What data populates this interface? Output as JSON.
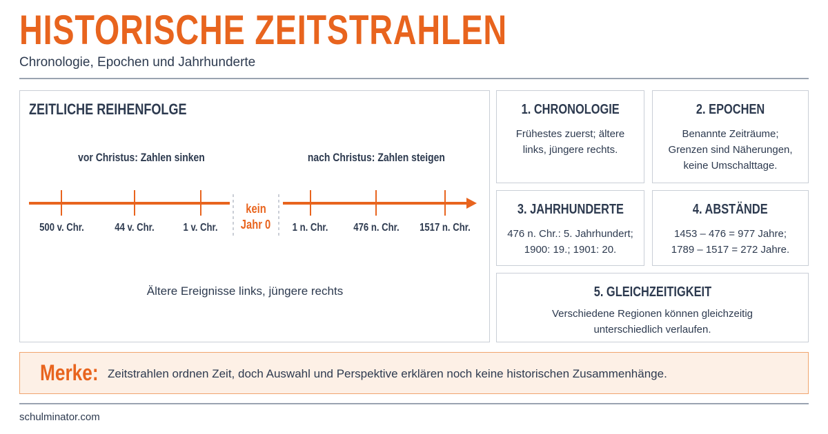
{
  "header": {
    "title": "HISTORISCHE ZEITSTRAHLEN",
    "subtitle": "Chronologie, Epochen und Jahrhunderte"
  },
  "timeline": {
    "heading": "ZEITLICHE REIHENFOLGE",
    "bc_label": "vor Christus: Zahlen sinken",
    "ad_label": "nach Christus: Zahlen steigen",
    "ticks": [
      "500 v. Chr.",
      "44 v. Chr.",
      "1 v. Chr.",
      "1 n. Chr.",
      "476 n. Chr.",
      "1517 n. Chr."
    ],
    "gap": [
      "kein",
      "Jahr 0"
    ],
    "caption": "Ältere Ereignisse links, jüngere rechts"
  },
  "cards": [
    {
      "title": "1. CHRONOLOGIE",
      "lines": [
        "Frühestes zuerst; ältere",
        "links, jüngere rechts."
      ]
    },
    {
      "title": "2. EPOCHEN",
      "lines": [
        "Benannte Zeiträume;",
        "Grenzen sind Näherungen,",
        "keine Umschalttage."
      ]
    },
    {
      "title": "3. JAHRHUNDERTE",
      "lines": [
        "476 n. Chr.: 5. Jahrhundert;",
        "1900: 19.; 1901: 20."
      ]
    },
    {
      "title": "4. ABSTÄNDE",
      "lines": [
        "1453 – 476 = 977 Jahre;",
        "1789 – 1517 = 272 Jahre."
      ]
    },
    {
      "title": "5. GLEICHZEITIGKEIT",
      "lines": [
        "Verschiedene Regionen können gleichzeitig",
        "unterschiedlich verlaufen."
      ]
    }
  ],
  "merke": {
    "label": "Merke:",
    "text": "Zeitstrahlen ordnen Zeit, doch Auswahl und Perspektive erklären noch keine historischen Zusammenhänge."
  },
  "footer": "schulminator.com"
}
